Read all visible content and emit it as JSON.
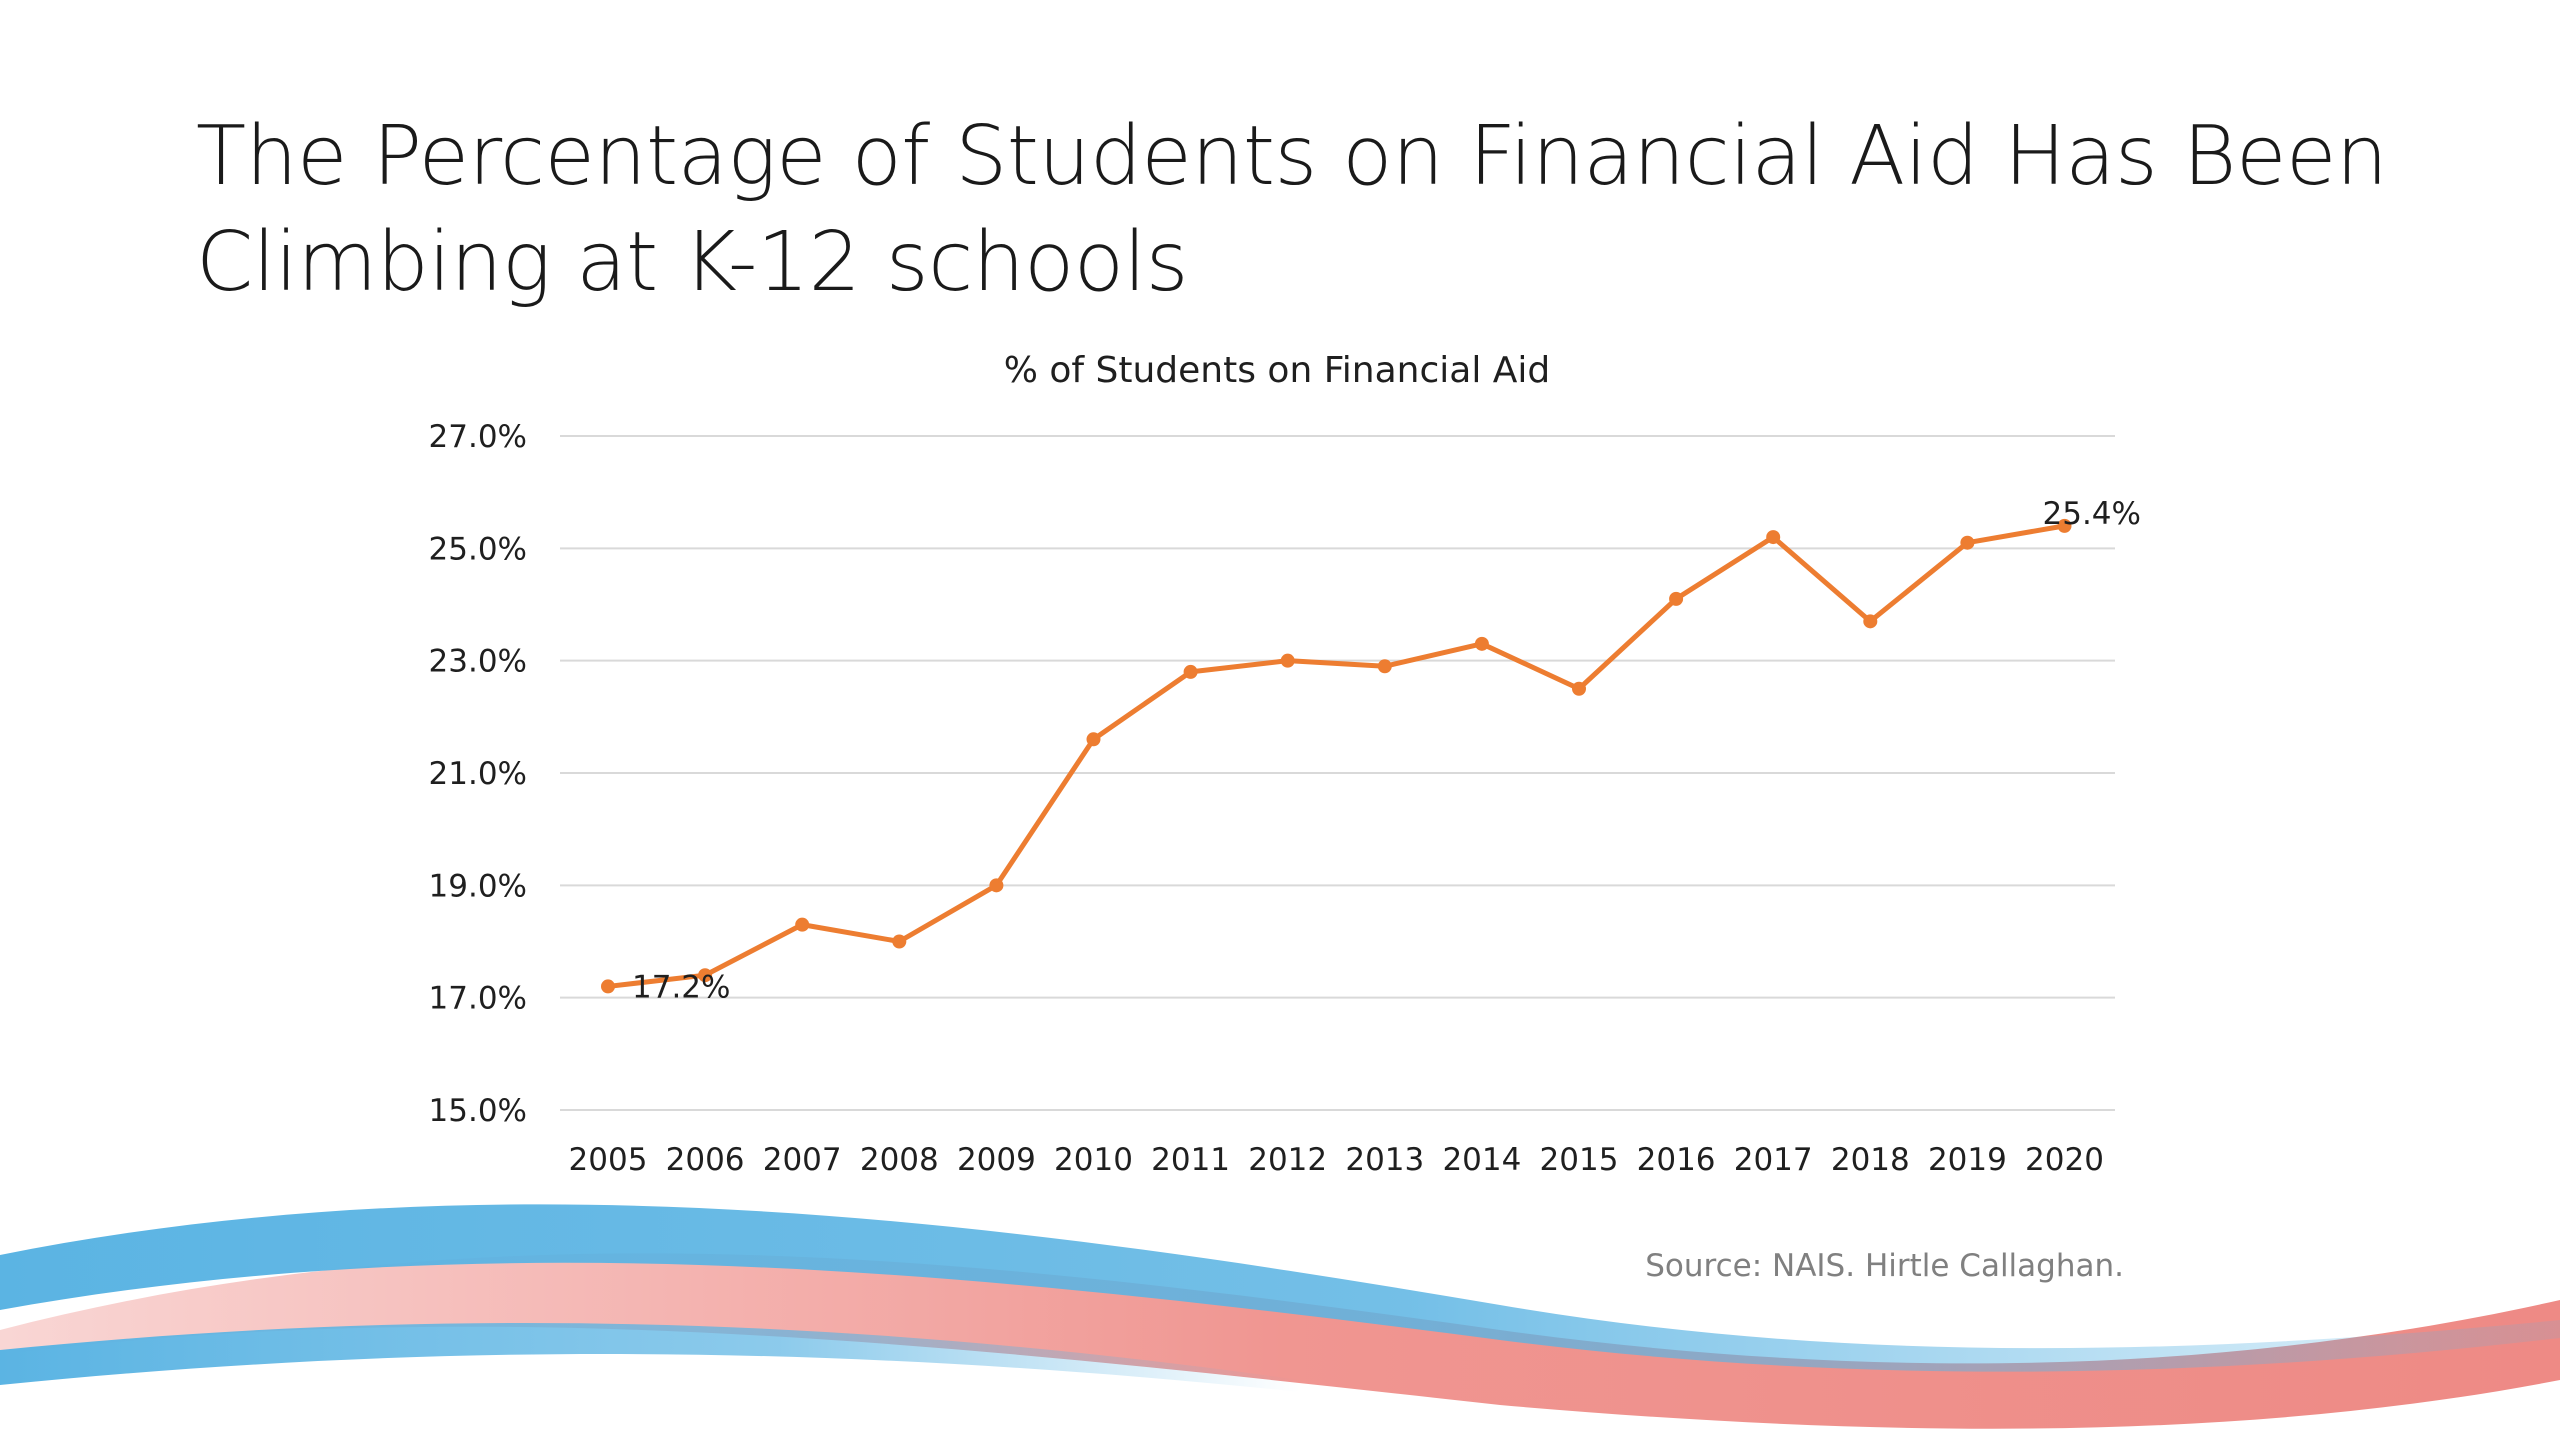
{
  "slide": {
    "title": "The Percentage of Students on Financial Aid Has Been Climbing at K-12 schools",
    "source": "Source: NAIS. Hirtle Callaghan."
  },
  "colors": {
    "line": "#ED7D31",
    "gridline": "#D9D9D9",
    "wave_blue": "#5BB4E3",
    "wave_salmon": "#EE8A85"
  },
  "chart_data": {
    "type": "line",
    "title": "% of Students on Financial Aid",
    "xlabel": "",
    "ylabel": "",
    "categories": [
      "2005",
      "2006",
      "2007",
      "2008",
      "2009",
      "2010",
      "2011",
      "2012",
      "2013",
      "2014",
      "2015",
      "2016",
      "2017",
      "2018",
      "2019",
      "2020"
    ],
    "series": [
      {
        "values": [
          17.2,
          17.4,
          18.3,
          18.0,
          19.0,
          21.6,
          22.8,
          23.0,
          22.9,
          23.3,
          22.5,
          24.1,
          25.2,
          23.7,
          25.1,
          25.4
        ]
      }
    ],
    "ylim": [
      15.0,
      27.0
    ],
    "yticks": [
      15.0,
      17.0,
      19.0,
      21.0,
      23.0,
      25.0,
      27.0
    ],
    "ytick_labels": [
      "15.0%",
      "17.0%",
      "19.0%",
      "21.0%",
      "23.0%",
      "25.0%",
      "27.0%"
    ],
    "data_labels": [
      {
        "category": "2005",
        "text": "17.2%"
      },
      {
        "category": "2020",
        "text": "25.4%"
      }
    ],
    "grid": true,
    "legend": "none"
  }
}
